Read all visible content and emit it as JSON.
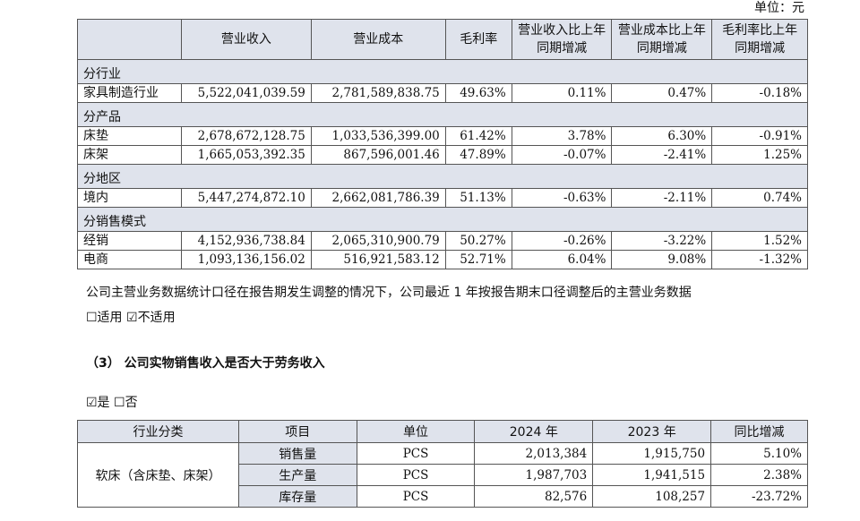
{
  "unit_label": "单位：元",
  "table1": {
    "headers": [
      "",
      "营业收入",
      "营业成本",
      "毛利率",
      "营业收入比上年同期增减",
      "营业成本比上年同期增减",
      "毛利率比上年同期增减"
    ],
    "sections": [
      {
        "title": "分行业",
        "rows": [
          {
            "name": "家具制造行业",
            "revenue": "5,522,041,039.59",
            "cost": "2,781,589,838.75",
            "margin": "49.63%",
            "rev_change": "0.11%",
            "cost_change": "0.47%",
            "margin_change": "-0.18%"
          }
        ]
      },
      {
        "title": "分产品",
        "rows": [
          {
            "name": "床垫",
            "revenue": "2,678,672,128.75",
            "cost": "1,033,536,399.00",
            "margin": "61.42%",
            "rev_change": "3.78%",
            "cost_change": "6.30%",
            "margin_change": "-0.91%"
          },
          {
            "name": "床架",
            "revenue": "1,665,053,392.35",
            "cost": "867,596,001.46",
            "margin": "47.89%",
            "rev_change": "-0.07%",
            "cost_change": "-2.41%",
            "margin_change": "1.25%"
          }
        ]
      },
      {
        "title": "分地区",
        "rows": [
          {
            "name": "境内",
            "revenue": "5,447,274,872.10",
            "cost": "2,662,081,786.39",
            "margin": "51.13%",
            "rev_change": "-0.63%",
            "cost_change": "-2.11%",
            "margin_change": "0.74%"
          }
        ]
      },
      {
        "title": "分销售模式",
        "rows": [
          {
            "name": "经销",
            "revenue": "4,152,936,738.84",
            "cost": "2,065,310,900.79",
            "margin": "50.27%",
            "rev_change": "-0.26%",
            "cost_change": "-3.22%",
            "margin_change": "1.52%"
          },
          {
            "name": "电商",
            "revenue": "1,093,136,156.02",
            "cost": "516,921,583.12",
            "margin": "52.71%",
            "rev_change": "6.04%",
            "cost_change": "9.08%",
            "margin_change": "-1.32%"
          }
        ]
      }
    ]
  },
  "note": "公司主营业务数据统计口径在报告期发生调整的情况下，公司最近 1 年按报告期末口径调整后的主营业务数据",
  "adjust_options": {
    "apply": "☐适用",
    "not_apply": "☑不适用"
  },
  "section3_heading": "（3） 公司实物销售收入是否大于劳务收入",
  "section3_options": {
    "yes": "☑是",
    "no": "☐否"
  },
  "table2": {
    "headers": [
      "行业分类",
      "项目",
      "单位",
      "2024 年",
      "2023 年",
      "同比增减"
    ],
    "category": "软床（含床垫、床架）",
    "rows": [
      {
        "item": "销售量",
        "unit": "PCS",
        "y2024": "2,013,384",
        "y2023": "1,915,750",
        "change": "5.10%"
      },
      {
        "item": "生产量",
        "unit": "PCS",
        "y2024": "1,987,703",
        "y2023": "1,941,515",
        "change": "2.38%"
      },
      {
        "item": "库存量",
        "unit": "PCS",
        "y2024": "82,576",
        "y2023": "108,257",
        "change": "-23.72%"
      }
    ]
  }
}
